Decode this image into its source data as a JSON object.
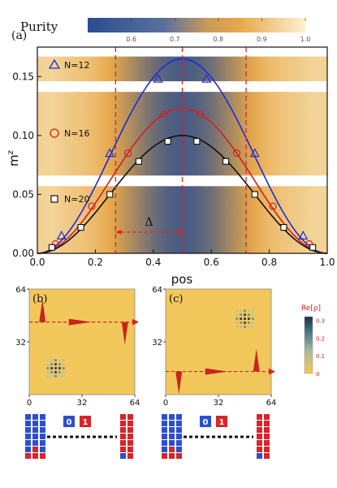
{
  "chart_data": [
    {
      "panel_label": "(a)",
      "type": "scatter",
      "colorbar": {
        "label": "Purity",
        "ticks": [
          "0.6",
          "0.7",
          "0.8",
          "0.9",
          "1.0"
        ],
        "range": [
          0.5,
          1.0
        ],
        "colors": {
          "low": "#2a4d8f",
          "mid": "#e7a84a",
          "high": "#fbf1cf"
        }
      },
      "xlabel": "pos",
      "ylabel": "m",
      "ylabel_sup": "z",
      "xlim": [
        0.0,
        1.0
      ],
      "ylim": [
        0.0,
        0.175
      ],
      "xticks": [
        "0.0",
        "0.2",
        "0.4",
        "0.6",
        "0.8",
        "1.0"
      ],
      "yticks": [
        "0.00",
        "0.05",
        "0.10",
        "0.15"
      ],
      "series": [
        {
          "name": "N=12",
          "color": "#1f2bd6",
          "marker": "triangle",
          "x": [
            0.0833,
            0.25,
            0.4167,
            0.5833,
            0.75,
            0.9167
          ],
          "y": [
            0.015,
            0.085,
            0.148,
            0.148,
            0.085,
            0.015
          ],
          "fit_peak": 0.165
        },
        {
          "name": "N=16",
          "color": "#d21f1f",
          "marker": "circle",
          "x": [
            0.0625,
            0.1875,
            0.3125,
            0.4375,
            0.5625,
            0.6875,
            0.8125,
            0.9375
          ],
          "y": [
            0.008,
            0.04,
            0.085,
            0.118,
            0.118,
            0.085,
            0.04,
            0.008
          ],
          "fit_peak": 0.123
        },
        {
          "name": "N=20",
          "color": "#111111",
          "marker": "square",
          "x": [
            0.05,
            0.15,
            0.25,
            0.35,
            0.45,
            0.55,
            0.65,
            0.75,
            0.85,
            0.95
          ],
          "y": [
            0.005,
            0.022,
            0.05,
            0.078,
            0.095,
            0.095,
            0.078,
            0.05,
            0.022,
            0.005
          ],
          "fit_peak": 0.1
        }
      ],
      "purity_profile": [
        {
          "pos": 0.0,
          "purity": 0.9
        },
        {
          "pos": 0.05,
          "purity": 0.91
        },
        {
          "pos": 0.1,
          "purity": 0.88
        },
        {
          "pos": 0.15,
          "purity": 0.86
        },
        {
          "pos": 0.2,
          "purity": 0.83
        },
        {
          "pos": 0.25,
          "purity": 0.78
        },
        {
          "pos": 0.3,
          "purity": 0.72
        },
        {
          "pos": 0.35,
          "purity": 0.66
        },
        {
          "pos": 0.4,
          "purity": 0.6
        },
        {
          "pos": 0.45,
          "purity": 0.56
        },
        {
          "pos": 0.5,
          "purity": 0.54
        },
        {
          "pos": 0.55,
          "purity": 0.56
        },
        {
          "pos": 0.6,
          "purity": 0.6
        },
        {
          "pos": 0.65,
          "purity": 0.66
        },
        {
          "pos": 0.7,
          "purity": 0.72
        },
        {
          "pos": 0.75,
          "purity": 0.78
        },
        {
          "pos": 0.8,
          "purity": 0.83
        },
        {
          "pos": 0.85,
          "purity": 0.86
        },
        {
          "pos": 0.9,
          "purity": 0.88
        },
        {
          "pos": 0.95,
          "purity": 0.91
        },
        {
          "pos": 1.0,
          "purity": 0.9
        }
      ],
      "vlines_pos": [
        0.27,
        0.5,
        0.72
      ],
      "delta_label": "Δ",
      "delta_range": [
        0.27,
        0.5
      ]
    },
    {
      "panel_label": "(b)",
      "type": "heatmap",
      "xlim": [
        0,
        64
      ],
      "ylim": [
        0,
        64
      ],
      "xticks": [
        "0",
        "32",
        "64"
      ],
      "yticks": [
        "32",
        "64"
      ],
      "block_center": [
        16,
        16
      ],
      "arrow_y": 44,
      "wave_packets": [
        {
          "x": 8,
          "direction": "up"
        },
        {
          "x": 24,
          "direction": "right"
        },
        {
          "x": 58,
          "direction": "down"
        }
      ],
      "spin_chain_label_a": "0",
      "spin_chain_label_b": "1"
    },
    {
      "panel_label": "(c)",
      "type": "heatmap",
      "xlim": [
        0,
        64
      ],
      "ylim": [
        0,
        64
      ],
      "xticks": [
        "0",
        "32",
        "64"
      ],
      "yticks": [
        "32",
        "64"
      ],
      "block_center": [
        48,
        46
      ],
      "arrow_y": 14,
      "wave_packets": [
        {
          "x": 8,
          "direction": "down"
        },
        {
          "x": 24,
          "direction": "right"
        },
        {
          "x": 55,
          "direction": "up"
        }
      ],
      "colorbar_label": "Re[ρ]",
      "colorbar_ticks": [
        "0.3",
        "0.2",
        "0.1",
        "0"
      ],
      "spin_chain_label_a": "0",
      "spin_chain_label_b": "1"
    }
  ]
}
